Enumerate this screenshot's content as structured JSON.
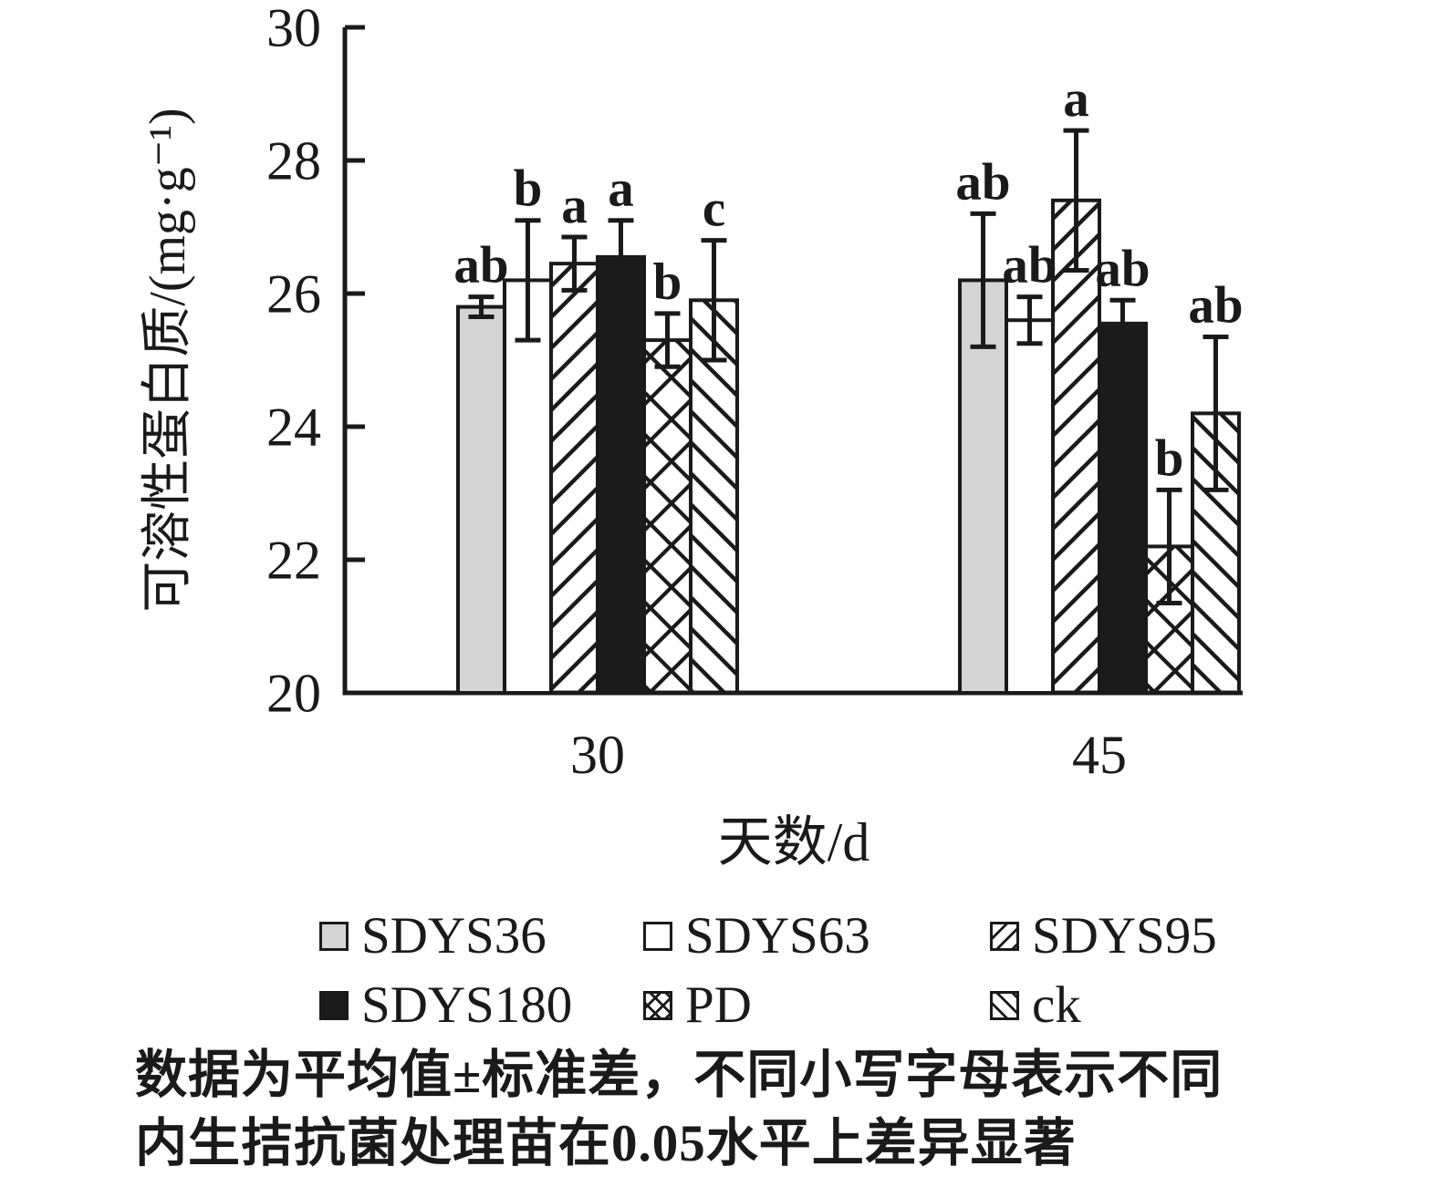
{
  "chart_data": {
    "type": "bar",
    "title": "",
    "xlabel": "天数/d",
    "ylabel": "可溶性蛋白质/(mg·g⁻¹)",
    "ylim": [
      20,
      30
    ],
    "yticks": [
      20,
      22,
      24,
      26,
      28,
      30
    ],
    "categories": [
      "30",
      "45"
    ],
    "grid": false,
    "legend_position": "bottom",
    "series": [
      {
        "name": "SDYS36",
        "fill": "gray",
        "values": [
          25.8,
          26.2
        ],
        "errors": [
          0.15,
          1.0
        ],
        "letters": [
          "ab",
          "ab"
        ]
      },
      {
        "name": "SDYS63",
        "fill": "white",
        "values": [
          26.2,
          25.6
        ],
        "errors": [
          0.9,
          0.35
        ],
        "letters": [
          "b",
          "ab"
        ]
      },
      {
        "name": "SDYS95",
        "fill": "hatch-forward",
        "values": [
          26.45,
          27.4
        ],
        "errors": [
          0.4,
          1.05
        ],
        "letters": [
          "a",
          "a"
        ]
      },
      {
        "name": "SDYS180",
        "fill": "black",
        "values": [
          26.55,
          25.55
        ],
        "errors": [
          0.55,
          0.35
        ],
        "letters": [
          "a",
          "ab"
        ]
      },
      {
        "name": "PD",
        "fill": "crosshatch",
        "values": [
          25.3,
          22.2
        ],
        "errors": [
          0.4,
          0.85
        ],
        "letters": [
          "b",
          "b"
        ]
      },
      {
        "name": "ck",
        "fill": "hatch-backward",
        "values": [
          25.9,
          24.2
        ],
        "errors": [
          0.9,
          1.15
        ],
        "letters": [
          "c",
          "ab"
        ]
      }
    ]
  },
  "caption": {
    "line1": "数据为平均值±标准差，不同小写字母表示不同",
    "line2": "内生拮抗菌处理苗在0.05水平上差异显著"
  },
  "colors": {
    "ink": "#1a1a1a",
    "bar_gray": "#d4d4d4",
    "bar_black": "#1b1b1b"
  }
}
